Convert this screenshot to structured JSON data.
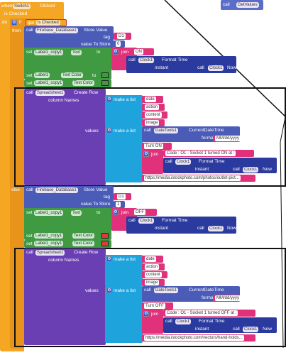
{
  "top_right": {
    "call": "call",
    "fn": "GetValues"
  },
  "event": {
    "when": "when",
    "component": "Switch1",
    "event": "Clicked"
  },
  "if_block": {
    "checked_label": "is Checked",
    "do": "do",
    "if": "if",
    "get": "get",
    "is_checked": "is Checked",
    "then": "then",
    "else": "else"
  },
  "store1": {
    "call": "call",
    "component": "Firebase_Database1",
    "method": "Store Value",
    "tag_label": "tag",
    "tag_value": "D1",
    "value_label": "value To Store",
    "value": "0"
  },
  "set_text1": {
    "set": "set",
    "component": "Label1_copy1",
    "prop": "Text",
    "to": "to",
    "join": "join",
    "on_text": "ON",
    "call": "call",
    "clock": "Clock1",
    "method": "Format Time",
    "instant": "instant",
    "call2": "call",
    "clock2": "Clock1",
    "now": "Now"
  },
  "set_color1": [
    {
      "set": "set",
      "component": "Label1",
      "prop": "Text Color",
      "to": "to",
      "color": "#3f9a42"
    },
    {
      "set": "set",
      "component": "Label1_copy1",
      "prop": "Text Color",
      "to": "to",
      "color": "#3f9a42"
    }
  ],
  "sheet1": {
    "call": "call",
    "component": "Spreadsheet1",
    "method": "Create Row",
    "col_label": "column Names",
    "make_list": "make a list",
    "columns": [
      "date",
      "action",
      "content",
      "image"
    ],
    "values_label": "values",
    "make_list2": "make a list",
    "dt_call": "call",
    "dt_component": "DateTools1",
    "dt_method": "CurrentDateTime",
    "format_label": "format",
    "format_value": "MM/dd/yyyy",
    "turn": "Turn ON",
    "join": "join",
    "code": "Code : O1 - Socket 1 turned ON at :",
    "clock": "Clock1",
    "fmt": "Format Time",
    "instant": "instant",
    "call2": "call",
    "clock2": "Clock1",
    "now": "Now",
    "url": "https://media.istockphoto.com/photos/outlet-pict..."
  },
  "store2": {
    "call": "call",
    "component": "Firebase_Database1",
    "method": "Store Value",
    "tag_label": "tag",
    "tag_value": "D1",
    "value_label": "value To Store",
    "value": "1"
  },
  "set_text2": {
    "set": "set",
    "component": "Label1_copy1",
    "prop": "Text",
    "to": "to",
    "join": "join",
    "off_text": "OFF",
    "call": "call",
    "clock": "Clock1",
    "method": "Format Time",
    "instant": "instant",
    "call2": "call",
    "clock2": "Clock1",
    "now": "Now"
  },
  "set_color2": [
    {
      "set": "set",
      "component": "Label1_copy1",
      "prop": "Text Color",
      "to": "to",
      "color": "#e53935"
    },
    {
      "set": "set",
      "component": "Label1_copy1",
      "prop": "Text Color",
      "to": "to",
      "color": "#e53935"
    }
  ],
  "sheet2": {
    "call": "call",
    "component": "Spreadsheet1",
    "method": "Create Row",
    "col_label": "column Names",
    "make_list": "make a list",
    "columns": [
      "date",
      "action",
      "content",
      "image"
    ],
    "values_label": "values",
    "make_list2": "make a list",
    "dt_call": "call",
    "dt_component": "DateTools1",
    "dt_method": "CurrentDateTime",
    "format_label": "format",
    "format_value": "MM/dd/yyyy",
    "turn": "Turn OFF",
    "join": "join",
    "code": "Code : O1 - Socket 1 turned OFF at :",
    "clock": "Clock1",
    "fmt": "Format Time",
    "instant": "instant",
    "call2": "call",
    "clock2": "Clock1",
    "now": "Now",
    "url": "https://media.istockphoto.com/vectors/hand-holds..."
  }
}
